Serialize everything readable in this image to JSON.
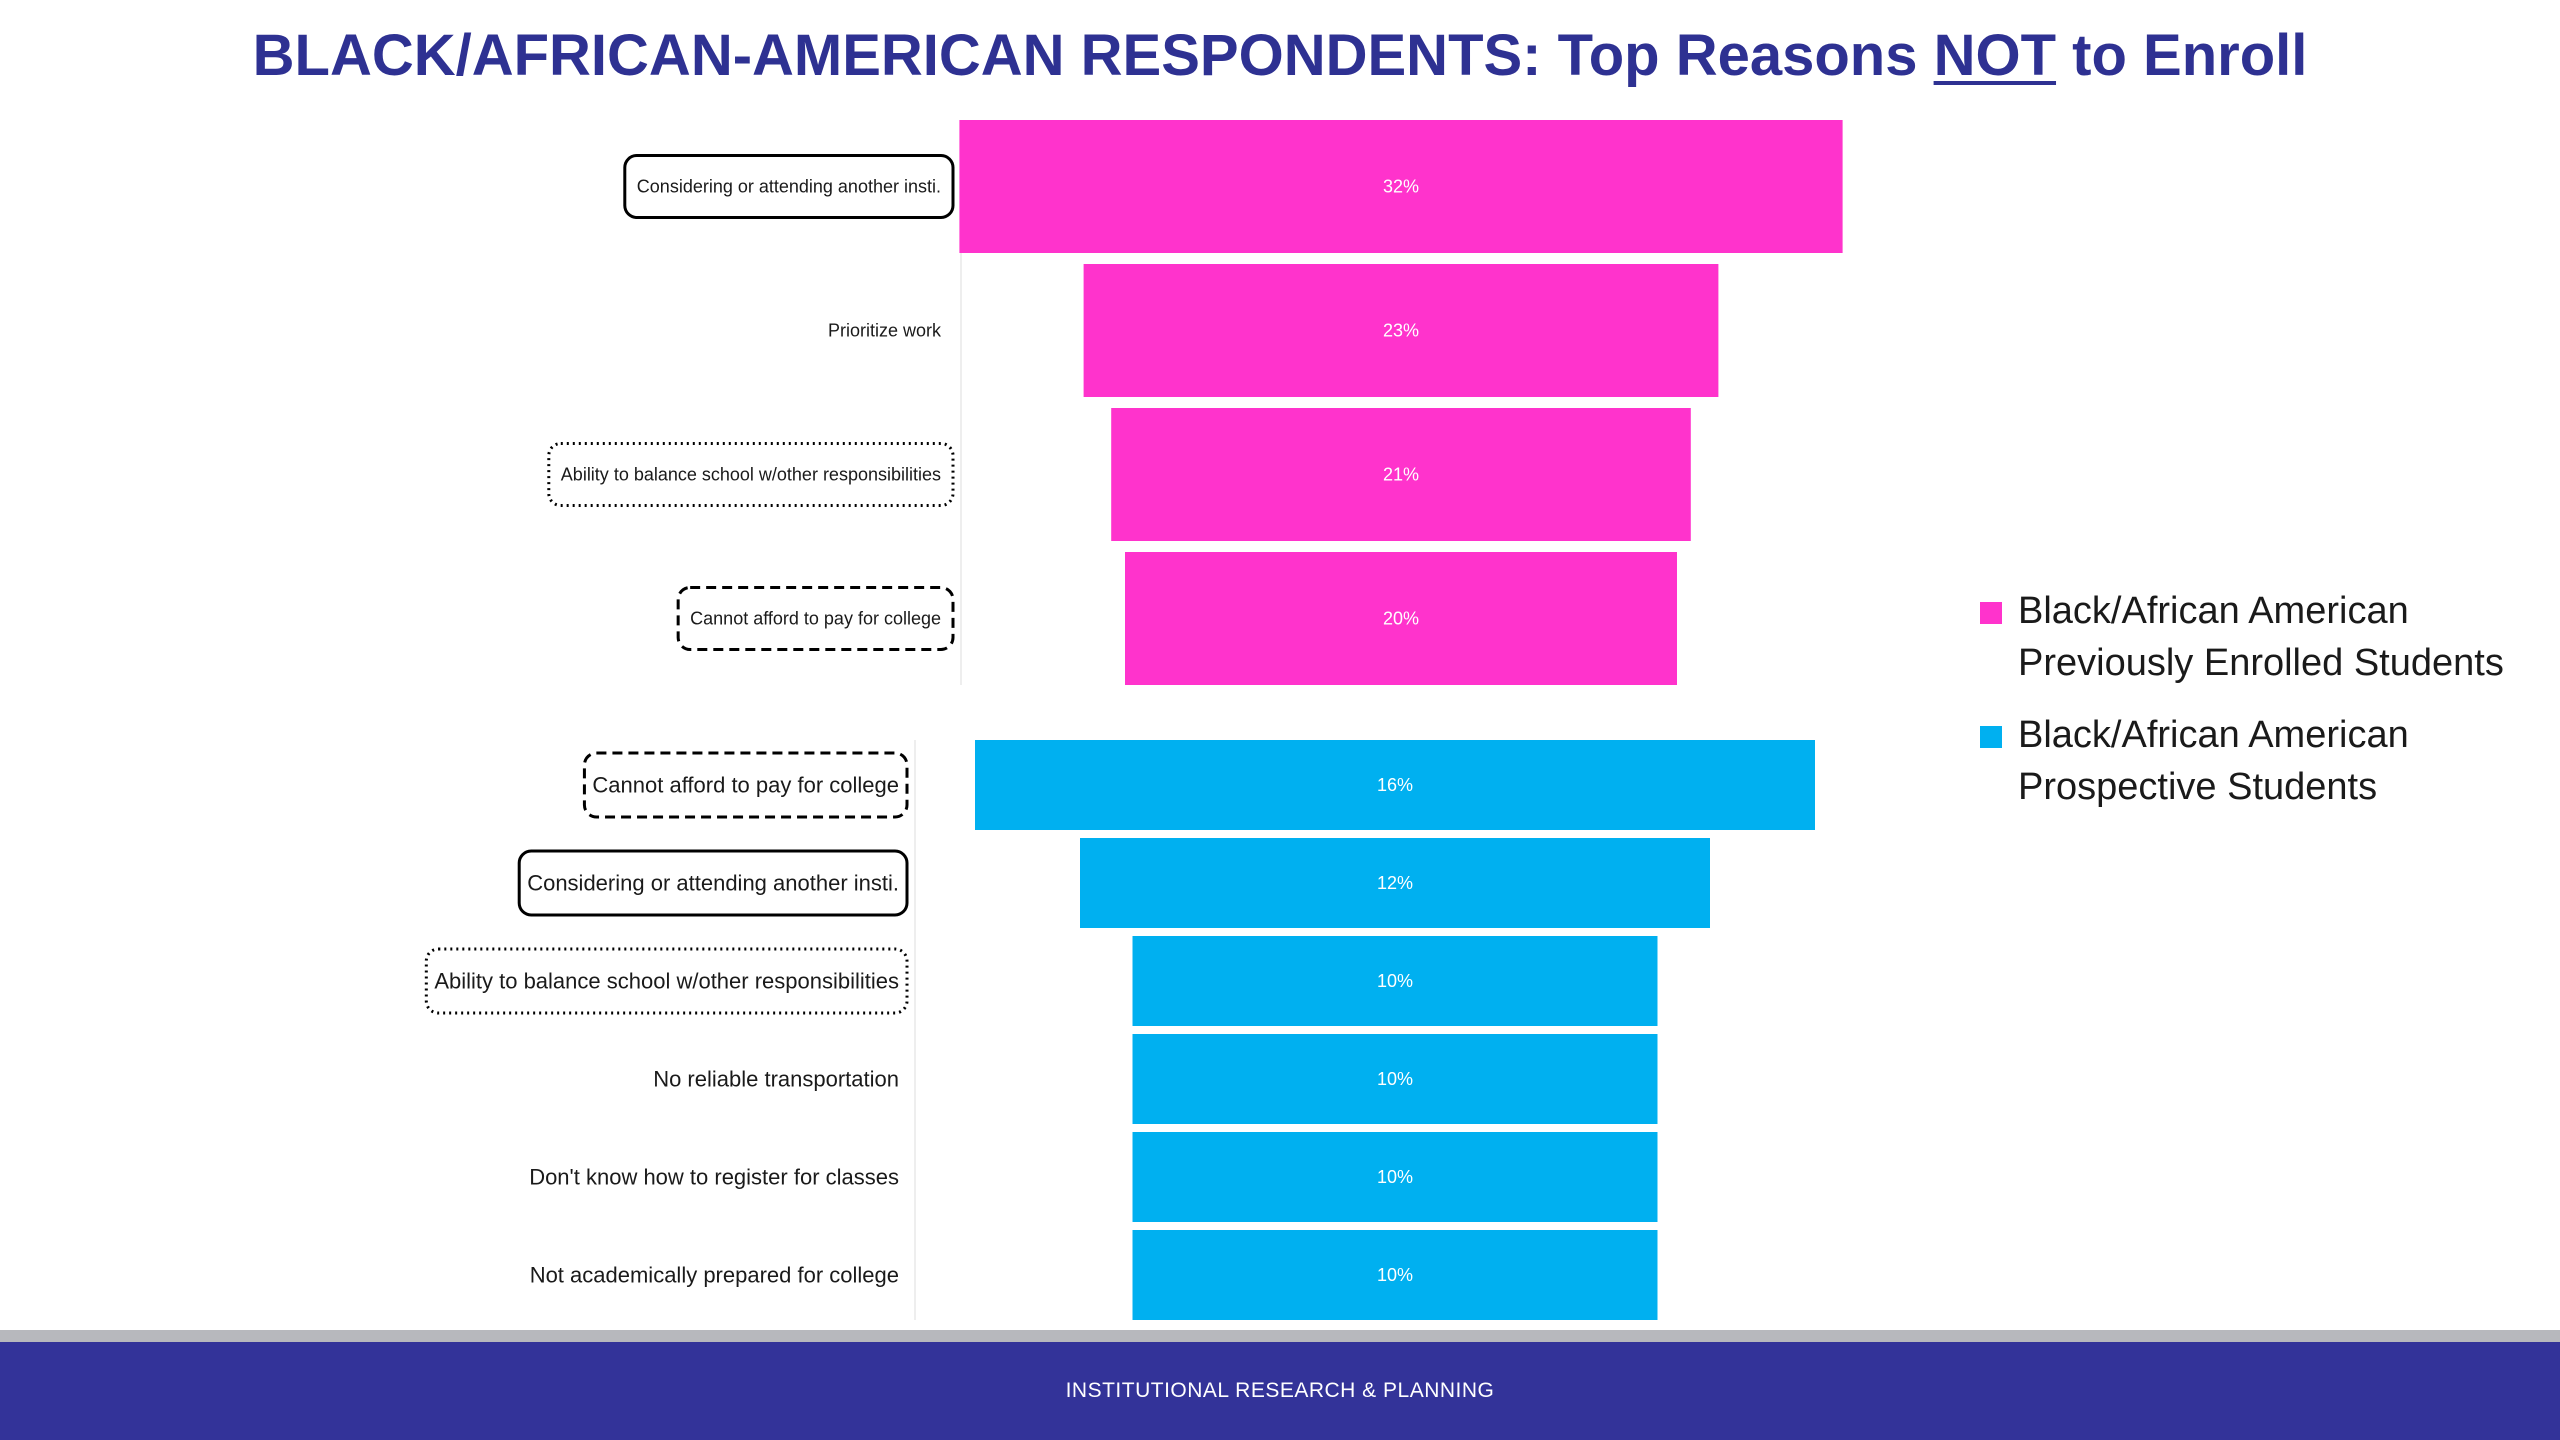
{
  "slide": {
    "title_part1": "BLACK/AFRICAN-AMERICAN RESPONDENTS:  Top Reasons ",
    "title_underlined": "NOT",
    "title_part2": " to Enroll",
    "footer": "INSTITUTIONAL RESEARCH & PLANNING"
  },
  "chart_data": {
    "type": "bar",
    "orientation": "horizontal-funnel",
    "unit": "%",
    "series": [
      {
        "name": "Black/African American Previously Enrolled Students",
        "color": "#ff33cc",
        "categories": [
          "Considering or attending another insti.",
          "Prioritize work",
          "Ability to balance school w/other responsibilities",
          "Cannot afford to pay for college"
        ],
        "values": [
          32,
          23,
          21,
          20
        ],
        "labels": [
          "32%",
          "23%",
          "21%",
          "20%"
        ],
        "label_box": [
          "solid",
          "none",
          "dotted",
          "dashed"
        ]
      },
      {
        "name": "Black/African American Prospective Students",
        "color": "#00b0f0",
        "categories": [
          "Cannot afford to pay for college",
          "Considering or attending another insti.",
          "Ability to balance school w/other responsibilities",
          "No reliable transportation",
          "Don't know how to register for classes",
          "Not academically prepared for college"
        ],
        "values": [
          16,
          12,
          10,
          10,
          10,
          10
        ],
        "labels": [
          "16%",
          "12%",
          "10%",
          "10%",
          "10%",
          "10%"
        ],
        "label_box": [
          "dashed",
          "solid",
          "dotted",
          "none",
          "none",
          "none"
        ]
      }
    ],
    "legend": [
      {
        "line1": "Black/African American",
        "line2": "Previously Enrolled Students",
        "color": "#ff33cc"
      },
      {
        "line1": "Black/African American",
        "line2": "Prospective Students",
        "color": "#00b0f0"
      }
    ],
    "legend_position": "right",
    "grid": false
  }
}
